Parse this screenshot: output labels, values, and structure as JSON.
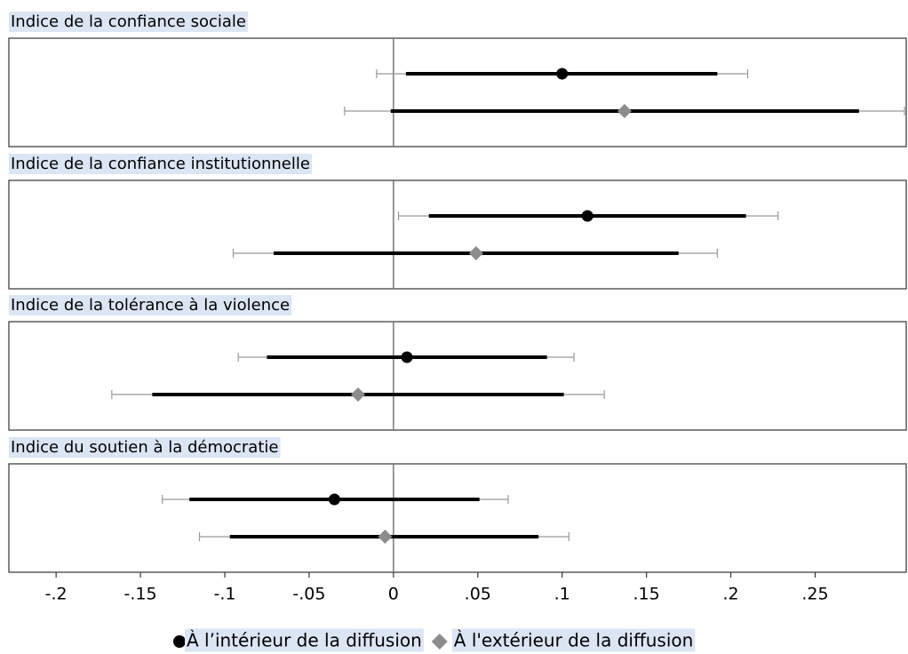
{
  "chart_data": {
    "type": "coefplot",
    "categories": [
      "Indice de la confiance sociale",
      "Indice de la confiance institutionnelle",
      "Indice de la tolérance à la violence",
      "Indice du soutien à la démocratie"
    ],
    "xlim": [
      -0.228,
      0.304
    ],
    "xticks": [
      {
        "value": -0.2,
        "label": "-.2"
      },
      {
        "value": -0.15,
        "label": "-.15"
      },
      {
        "value": -0.1,
        "label": "-.1"
      },
      {
        "value": -0.05,
        "label": "-.05"
      },
      0,
      {
        "value": 0.05,
        "label": ".05"
      },
      {
        "value": 0.1,
        "label": ".1"
      },
      {
        "value": 0.15,
        "label": ".15"
      },
      {
        "value": 0.2,
        "label": ".2"
      },
      {
        "value": 0.25,
        "label": ".25"
      }
    ],
    "xline": 0,
    "series": [
      {
        "name": "À l’intérieur de la diffusion",
        "color": "#000000",
        "marker": "circle",
        "values": [
          0.1,
          0.115,
          0.008,
          -0.035
        ],
        "inner_low": [
          0.0074,
          0.021,
          -0.075,
          -0.121
        ],
        "inner_high": [
          0.192,
          0.209,
          0.091,
          0.051
        ],
        "outer_low": [
          -0.01,
          0.003,
          -0.092,
          -0.137
        ],
        "outer_high": [
          0.21,
          0.228,
          0.107,
          0.068
        ]
      },
      {
        "name": "À l'extérieur de la diffusion",
        "color": "#8c8c8c",
        "marker": "diamond",
        "values": [
          0.137,
          0.049,
          -0.021,
          -0.005
        ],
        "inner_low": [
          -0.0016,
          -0.071,
          -0.143,
          -0.097
        ],
        "inner_high": [
          0.276,
          0.169,
          0.101,
          0.086
        ],
        "outer_low": [
          -0.029,
          -0.095,
          -0.167,
          -0.115
        ],
        "outer_high": [
          0.303,
          0.192,
          0.125,
          0.104
        ]
      }
    ]
  }
}
